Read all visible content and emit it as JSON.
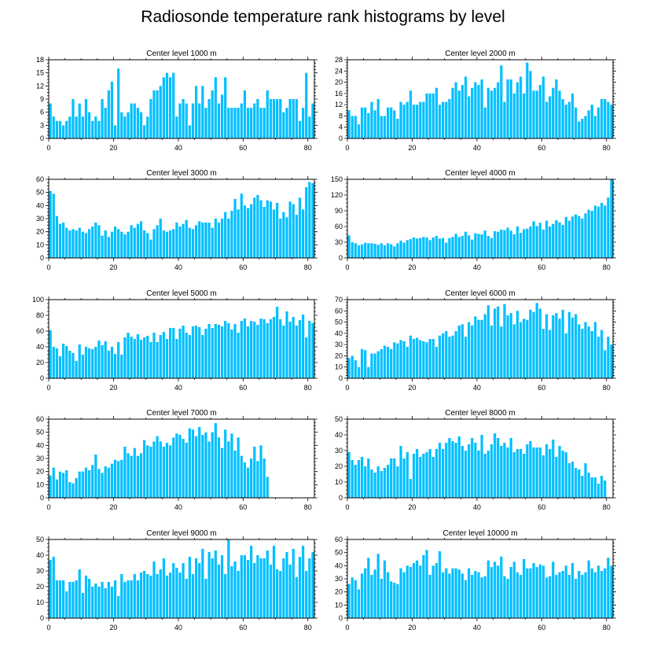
{
  "chart_data": {
    "type": "bar",
    "title": "Radiosonde temperature rank histograms by level",
    "colors": {
      "bar": "#00bfff",
      "frame": "#000000"
    },
    "panels": [
      {
        "title": "Center level 1000 m",
        "xlim": [
          0,
          82
        ],
        "xticks": [
          0,
          20,
          40,
          60,
          80
        ],
        "ylim": [
          0,
          18
        ],
        "yticks": [
          0,
          3,
          6,
          9,
          12,
          15,
          18
        ],
        "values": [
          8,
          5,
          4,
          4,
          3,
          4,
          5,
          9,
          5,
          8,
          5,
          9,
          6,
          4,
          5,
          4,
          9,
          7,
          11,
          13,
          3,
          16,
          6,
          5,
          6,
          8,
          8,
          7,
          6,
          3,
          5,
          9,
          11,
          11,
          12,
          14,
          15,
          14,
          15,
          5,
          8,
          9,
          8,
          3,
          8,
          12,
          8,
          12,
          7,
          9,
          11,
          14,
          8,
          10,
          14,
          7,
          7,
          7,
          7,
          8,
          11,
          7,
          7,
          8,
          9,
          7,
          7,
          11,
          9,
          9,
          9,
          9,
          6,
          7,
          9,
          9,
          9,
          4,
          7,
          15,
          5,
          8
        ]
      },
      {
        "title": "Center level 2000 m",
        "xlim": [
          0,
          82
        ],
        "xticks": [
          0,
          20,
          40,
          60,
          80
        ],
        "ylim": [
          0,
          28
        ],
        "yticks": [
          0,
          4,
          8,
          12,
          16,
          20,
          24,
          28
        ],
        "values": [
          10,
          8,
          8,
          5,
          11,
          11,
          9,
          13,
          10,
          14,
          8,
          8,
          11,
          11,
          10,
          7,
          13,
          12,
          13,
          17,
          12,
          12,
          13,
          13,
          16,
          16,
          16,
          18,
          12,
          13,
          13,
          14,
          18,
          20,
          17,
          19,
          22,
          15,
          18,
          20,
          19,
          21,
          11,
          18,
          17,
          18,
          20,
          26,
          13,
          21,
          21,
          16,
          20,
          22,
          16,
          27,
          24,
          17,
          17,
          19,
          22,
          13,
          15,
          18,
          21,
          17,
          14,
          12,
          13,
          16,
          11,
          6,
          7,
          8,
          10,
          12,
          8,
          11,
          14,
          14,
          13,
          12
        ]
      },
      {
        "title": "Center level 3000 m",
        "xlim": [
          0,
          82
        ],
        "xticks": [
          0,
          20,
          40,
          60,
          80
        ],
        "ylim": [
          0,
          60
        ],
        "yticks": [
          0,
          10,
          20,
          30,
          40,
          50,
          60
        ],
        "values": [
          51,
          49,
          32,
          26,
          27,
          23,
          21,
          22,
          21,
          23,
          20,
          19,
          22,
          24,
          27,
          25,
          17,
          21,
          16,
          20,
          24,
          22,
          20,
          18,
          20,
          25,
          23,
          26,
          28,
          21,
          19,
          14,
          22,
          25,
          30,
          21,
          20,
          21,
          22,
          27,
          24,
          26,
          29,
          23,
          22,
          25,
          28,
          27,
          27,
          27,
          23,
          30,
          27,
          30,
          35,
          30,
          36,
          45,
          37,
          49,
          40,
          38,
          41,
          46,
          48,
          44,
          39,
          44,
          43,
          37,
          42,
          30,
          35,
          31,
          43,
          41,
          33,
          46,
          37,
          54,
          58,
          57
        ]
      },
      {
        "title": "Center level 4000 m",
        "xlim": [
          0,
          82
        ],
        "xticks": [
          0,
          20,
          40,
          60,
          80
        ],
        "ylim": [
          0,
          150
        ],
        "yticks": [
          0,
          30,
          60,
          90,
          120,
          150
        ],
        "values": [
          43,
          30,
          28,
          24,
          26,
          29,
          28,
          28,
          27,
          25,
          28,
          24,
          28,
          26,
          22,
          28,
          33,
          29,
          34,
          36,
          39,
          37,
          38,
          40,
          39,
          34,
          39,
          42,
          37,
          38,
          29,
          38,
          40,
          46,
          40,
          42,
          50,
          43,
          35,
          47,
          46,
          45,
          52,
          42,
          38,
          51,
          50,
          54,
          53,
          58,
          52,
          45,
          60,
          48,
          55,
          56,
          60,
          70,
          61,
          67,
          54,
          71,
          60,
          65,
          72,
          68,
          63,
          78,
          71,
          79,
          83,
          80,
          75,
          85,
          92,
          90,
          100,
          98,
          105,
          100,
          115,
          150
        ]
      },
      {
        "title": "Center level 5000 m",
        "xlim": [
          0,
          82
        ],
        "xticks": [
          0,
          20,
          40,
          60,
          80
        ],
        "ylim": [
          0,
          100
        ],
        "yticks": [
          0,
          20,
          40,
          60,
          80,
          100
        ],
        "values": [
          61,
          40,
          38,
          28,
          44,
          41,
          35,
          32,
          22,
          43,
          30,
          40,
          38,
          37,
          40,
          48,
          42,
          47,
          35,
          40,
          31,
          46,
          30,
          52,
          58,
          53,
          50,
          56,
          49,
          52,
          54,
          46,
          58,
          46,
          55,
          59,
          50,
          64,
          64,
          50,
          63,
          67,
          58,
          55,
          66,
          67,
          65,
          55,
          63,
          69,
          64,
          69,
          68,
          66,
          73,
          70,
          62,
          69,
          58,
          73,
          76,
          66,
          73,
          72,
          68,
          76,
          75,
          70,
          75,
          78,
          91,
          75,
          67,
          85,
          72,
          78,
          67,
          74,
          81,
          52,
          73,
          70
        ]
      },
      {
        "title": "Center level 6000 m",
        "xlim": [
          0,
          82
        ],
        "xticks": [
          0,
          20,
          40,
          60,
          80
        ],
        "ylim": [
          0,
          70
        ],
        "yticks": [
          0,
          10,
          20,
          30,
          40,
          50,
          60,
          70
        ],
        "values": [
          18,
          20,
          16,
          10,
          26,
          25,
          10,
          22,
          22,
          24,
          26,
          29,
          28,
          26,
          32,
          31,
          34,
          33,
          28,
          38,
          35,
          36,
          34,
          33,
          32,
          35,
          35,
          28,
          38,
          40,
          42,
          37,
          38,
          42,
          47,
          48,
          37,
          50,
          47,
          55,
          52,
          52,
          57,
          65,
          47,
          62,
          64,
          46,
          66,
          56,
          58,
          48,
          60,
          50,
          53,
          52,
          61,
          59,
          67,
          62,
          44,
          57,
          43,
          56,
          58,
          53,
          61,
          40,
          59,
          54,
          57,
          48,
          44,
          50,
          46,
          42,
          50,
          37,
          43,
          25,
          37,
          30
        ]
      },
      {
        "title": "Center level 7000 m",
        "xlim": [
          0,
          82
        ],
        "xticks": [
          0,
          20,
          40,
          60,
          80
        ],
        "ylim": [
          0,
          60
        ],
        "yticks": [
          0,
          10,
          20,
          30,
          40,
          50,
          60
        ],
        "values": [
          17,
          23,
          14,
          20,
          19,
          21,
          12,
          11,
          15,
          20,
          20,
          23,
          21,
          25,
          33,
          22,
          19,
          24,
          23,
          26,
          29,
          28,
          29,
          39,
          34,
          32,
          38,
          32,
          34,
          44,
          40,
          39,
          43,
          47,
          43,
          39,
          42,
          40,
          46,
          49,
          48,
          45,
          42,
          53,
          52,
          47,
          54,
          48,
          50,
          43,
          50,
          57,
          46,
          38,
          52,
          43,
          49,
          36,
          46,
          32,
          27,
          23,
          30,
          39,
          28,
          40,
          30,
          16
        ]
      },
      {
        "title": "Center level 8000 m",
        "xlim": [
          0,
          82
        ],
        "xticks": [
          0,
          20,
          40,
          60,
          80
        ],
        "ylim": [
          0,
          50
        ],
        "yticks": [
          0,
          10,
          20,
          30,
          40,
          50
        ],
        "values": [
          29,
          24,
          21,
          24,
          26,
          20,
          25,
          18,
          16,
          20,
          17,
          19,
          21,
          25,
          25,
          20,
          33,
          25,
          29,
          12,
          28,
          31,
          26,
          28,
          29,
          31,
          26,
          31,
          35,
          31,
          35,
          38,
          36,
          35,
          39,
          33,
          30,
          34,
          38,
          35,
          30,
          40,
          28,
          30,
          34,
          41,
          38,
          33,
          35,
          32,
          38,
          29,
          31,
          31,
          28,
          34,
          36,
          32,
          32,
          32,
          27,
          34,
          31,
          37,
          26,
          33,
          30,
          29,
          22,
          23,
          19,
          18,
          14,
          22,
          16,
          13,
          13,
          9,
          14,
          11
        ]
      },
      {
        "title": "Center level 9000 m",
        "xlim": [
          0,
          82
        ],
        "xticks": [
          0,
          20,
          40,
          60,
          80
        ],
        "ylim": [
          0,
          50
        ],
        "yticks": [
          0,
          10,
          20,
          30,
          40,
          50
        ],
        "values": [
          37,
          39,
          24,
          24,
          24,
          17,
          23,
          23,
          24,
          31,
          16,
          27,
          25,
          20,
          22,
          20,
          23,
          19,
          23,
          20,
          24,
          14,
          28,
          23,
          24,
          24,
          28,
          24,
          29,
          30,
          28,
          27,
          36,
          28,
          31,
          38,
          27,
          29,
          35,
          32,
          29,
          35,
          25,
          39,
          28,
          38,
          35,
          44,
          25,
          42,
          38,
          43,
          34,
          40,
          28,
          50,
          33,
          36,
          30,
          40,
          40,
          37,
          46,
          35,
          40,
          38,
          38,
          43,
          34,
          46,
          31,
          30,
          38,
          42,
          34,
          44,
          26,
          39,
          46,
          30,
          38,
          42
        ]
      },
      {
        "title": "Center level 10000 m",
        "xlim": [
          0,
          82
        ],
        "xticks": [
          0,
          20,
          40,
          60,
          80
        ],
        "ylim": [
          0,
          60
        ],
        "yticks": [
          0,
          10,
          20,
          30,
          40,
          50,
          60
        ],
        "values": [
          26,
          31,
          29,
          22,
          34,
          38,
          46,
          33,
          37,
          49,
          30,
          44,
          35,
          28,
          27,
          26,
          38,
          35,
          40,
          39,
          42,
          44,
          40,
          48,
          52,
          33,
          40,
          42,
          51,
          35,
          38,
          34,
          38,
          38,
          37,
          34,
          29,
          38,
          33,
          36,
          35,
          31,
          32,
          44,
          39,
          43,
          40,
          47,
          32,
          30,
          39,
          43,
          35,
          33,
          45,
          38,
          38,
          42,
          39,
          41,
          40,
          31,
          32,
          43,
          33,
          35,
          36,
          40,
          33,
          42,
          30,
          36,
          33,
          35,
          44,
          38,
          35,
          40,
          36,
          38,
          46,
          40
        ]
      }
    ]
  }
}
